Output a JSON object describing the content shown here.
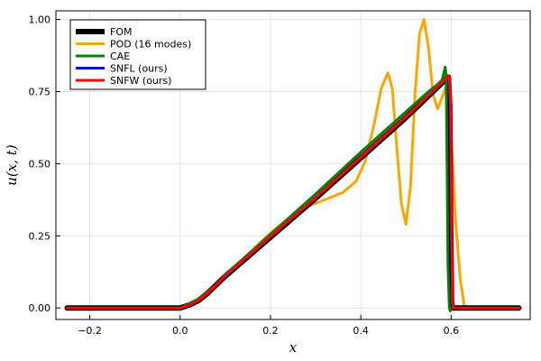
{
  "chart_data": {
    "type": "line",
    "xlabel": "x",
    "ylabel": "u(x, t)",
    "xlim": [
      -0.275,
      0.775
    ],
    "ylim": [
      -0.04,
      1.03
    ],
    "grid": true,
    "legend_position": "top-left",
    "x_ticks": [
      {
        "value": -0.2,
        "label": "−0.2"
      },
      {
        "value": 0.0,
        "label": "0.0"
      },
      {
        "value": 0.2,
        "label": "0.2"
      },
      {
        "value": 0.4,
        "label": "0.4"
      },
      {
        "value": 0.6,
        "label": "0.6"
      }
    ],
    "y_ticks": [
      {
        "value": 0.0,
        "label": "0.00"
      },
      {
        "value": 0.25,
        "label": "0.25"
      },
      {
        "value": 0.5,
        "label": "0.50"
      },
      {
        "value": 0.75,
        "label": "0.75"
      },
      {
        "value": 1.0,
        "label": "1.00"
      }
    ],
    "series": [
      {
        "name": "FOM",
        "color": "#000000",
        "points": [
          [
            -0.25,
            0
          ],
          [
            -0.05,
            0
          ],
          [
            0.0,
            0.0
          ],
          [
            0.02,
            0.01
          ],
          [
            0.04,
            0.025
          ],
          [
            0.06,
            0.05
          ],
          [
            0.08,
            0.08
          ],
          [
            0.1,
            0.11
          ],
          [
            0.2,
            0.245
          ],
          [
            0.3,
            0.38
          ],
          [
            0.4,
            0.52
          ],
          [
            0.5,
            0.66
          ],
          [
            0.55,
            0.735
          ],
          [
            0.59,
            0.795
          ],
          [
            0.594,
            0.8
          ],
          [
            0.597,
            0.7
          ],
          [
            0.599,
            0.3
          ],
          [
            0.601,
            0.02
          ],
          [
            0.603,
            0
          ],
          [
            0.75,
            0
          ]
        ]
      },
      {
        "name": "POD (16 modes)",
        "color": "#FFA500",
        "points": [
          [
            -0.25,
            0
          ],
          [
            -0.05,
            0
          ],
          [
            0.0,
            0.0
          ],
          [
            0.04,
            0.03
          ],
          [
            0.08,
            0.085
          ],
          [
            0.12,
            0.14
          ],
          [
            0.16,
            0.2
          ],
          [
            0.2,
            0.26
          ],
          [
            0.24,
            0.31
          ],
          [
            0.28,
            0.35
          ],
          [
            0.32,
            0.375
          ],
          [
            0.36,
            0.4
          ],
          [
            0.39,
            0.44
          ],
          [
            0.41,
            0.51
          ],
          [
            0.43,
            0.64
          ],
          [
            0.445,
            0.76
          ],
          [
            0.46,
            0.815
          ],
          [
            0.47,
            0.76
          ],
          [
            0.48,
            0.55
          ],
          [
            0.49,
            0.36
          ],
          [
            0.5,
            0.29
          ],
          [
            0.51,
            0.42
          ],
          [
            0.52,
            0.74
          ],
          [
            0.53,
            0.95
          ],
          [
            0.54,
            1.0
          ],
          [
            0.55,
            0.9
          ],
          [
            0.56,
            0.74
          ],
          [
            0.57,
            0.69
          ],
          [
            0.58,
            0.73
          ],
          [
            0.59,
            0.77
          ],
          [
            0.6,
            0.6
          ],
          [
            0.61,
            0.3
          ],
          [
            0.62,
            0.1
          ],
          [
            0.63,
            0.0
          ],
          [
            0.75,
            0
          ]
        ]
      },
      {
        "name": "CAE",
        "color": "#008000",
        "points": [
          [
            -0.25,
            0
          ],
          [
            -0.05,
            0
          ],
          [
            0.0,
            0.0
          ],
          [
            0.04,
            0.03
          ],
          [
            0.08,
            0.08
          ],
          [
            0.1,
            0.115
          ],
          [
            0.2,
            0.255
          ],
          [
            0.3,
            0.395
          ],
          [
            0.4,
            0.54
          ],
          [
            0.5,
            0.68
          ],
          [
            0.55,
            0.75
          ],
          [
            0.57,
            0.775
          ],
          [
            0.58,
            0.79
          ],
          [
            0.587,
            0.835
          ],
          [
            0.589,
            0.8
          ],
          [
            0.591,
            0.5
          ],
          [
            0.593,
            0.15
          ],
          [
            0.596,
            0.0
          ],
          [
            0.598,
            -0.01
          ],
          [
            0.6,
            0
          ],
          [
            0.75,
            0
          ]
        ]
      },
      {
        "name": "SNFL (ours)",
        "color": "#0000ff",
        "points": [
          [
            -0.25,
            0
          ],
          [
            -0.05,
            0
          ],
          [
            0.0,
            0.0
          ],
          [
            0.02,
            0.01
          ],
          [
            0.04,
            0.025
          ],
          [
            0.06,
            0.05
          ],
          [
            0.08,
            0.08
          ],
          [
            0.1,
            0.11
          ],
          [
            0.2,
            0.247
          ],
          [
            0.3,
            0.382
          ],
          [
            0.4,
            0.522
          ],
          [
            0.5,
            0.662
          ],
          [
            0.55,
            0.737
          ],
          [
            0.59,
            0.797
          ],
          [
            0.595,
            0.802
          ],
          [
            0.598,
            0.7
          ],
          [
            0.6,
            0.3
          ],
          [
            0.602,
            0.02
          ],
          [
            0.604,
            0
          ],
          [
            0.75,
            0
          ]
        ]
      },
      {
        "name": "SNFW (ours)",
        "color": "#ff0000",
        "points": [
          [
            -0.25,
            0
          ],
          [
            -0.05,
            0
          ],
          [
            0.0,
            0.0
          ],
          [
            0.02,
            0.01
          ],
          [
            0.04,
            0.026
          ],
          [
            0.06,
            0.05
          ],
          [
            0.08,
            0.08
          ],
          [
            0.1,
            0.112
          ],
          [
            0.2,
            0.248
          ],
          [
            0.3,
            0.383
          ],
          [
            0.4,
            0.523
          ],
          [
            0.5,
            0.663
          ],
          [
            0.55,
            0.738
          ],
          [
            0.59,
            0.798
          ],
          [
            0.596,
            0.805
          ],
          [
            0.599,
            0.7
          ],
          [
            0.601,
            0.3
          ],
          [
            0.603,
            0.02
          ],
          [
            0.605,
            0
          ],
          [
            0.75,
            0
          ]
        ]
      }
    ]
  }
}
